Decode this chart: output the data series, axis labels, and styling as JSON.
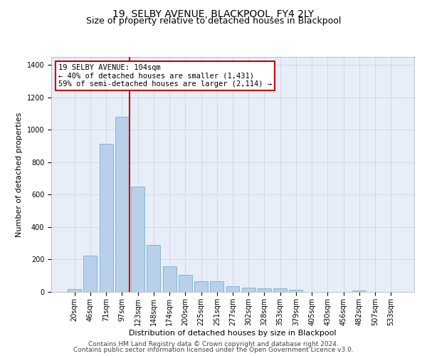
{
  "title1": "19, SELBY AVENUE, BLACKPOOL, FY4 2LY",
  "title2": "Size of property relative to detached houses in Blackpool",
  "xlabel": "Distribution of detached houses by size in Blackpool",
  "ylabel": "Number of detached properties",
  "categories": [
    "20sqm",
    "46sqm",
    "71sqm",
    "97sqm",
    "123sqm",
    "148sqm",
    "174sqm",
    "200sqm",
    "225sqm",
    "251sqm",
    "277sqm",
    "302sqm",
    "328sqm",
    "353sqm",
    "379sqm",
    "405sqm",
    "430sqm",
    "456sqm",
    "482sqm",
    "507sqm",
    "533sqm"
  ],
  "values": [
    18,
    225,
    915,
    1080,
    650,
    290,
    158,
    105,
    68,
    68,
    35,
    27,
    22,
    22,
    15,
    0,
    0,
    0,
    10,
    0,
    0
  ],
  "bar_color": "#b8d0ea",
  "bar_edge_color": "#7aafd4",
  "background_color": "#e8eef8",
  "grid_color": "#d0d8e8",
  "vline_x": 3.5,
  "vline_color": "#cc0000",
  "annotation_line1": "19 SELBY AVENUE: 104sqm",
  "annotation_line2": "← 40% of detached houses are smaller (1,431)",
  "annotation_line3": "59% of semi-detached houses are larger (2,114) →",
  "annotation_box_color": "#cc0000",
  "annotation_fill": "white",
  "ylim": [
    0,
    1450
  ],
  "yticks": [
    0,
    200,
    400,
    600,
    800,
    1000,
    1200,
    1400
  ],
  "footer1": "Contains HM Land Registry data © Crown copyright and database right 2024.",
  "footer2": "Contains public sector information licensed under the Open Government Licence v3.0.",
  "title1_fontsize": 10,
  "title2_fontsize": 9,
  "tick_fontsize": 7,
  "ylabel_fontsize": 8,
  "xlabel_fontsize": 8,
  "footer_fontsize": 6.5,
  "annotation_fontsize": 7.5
}
